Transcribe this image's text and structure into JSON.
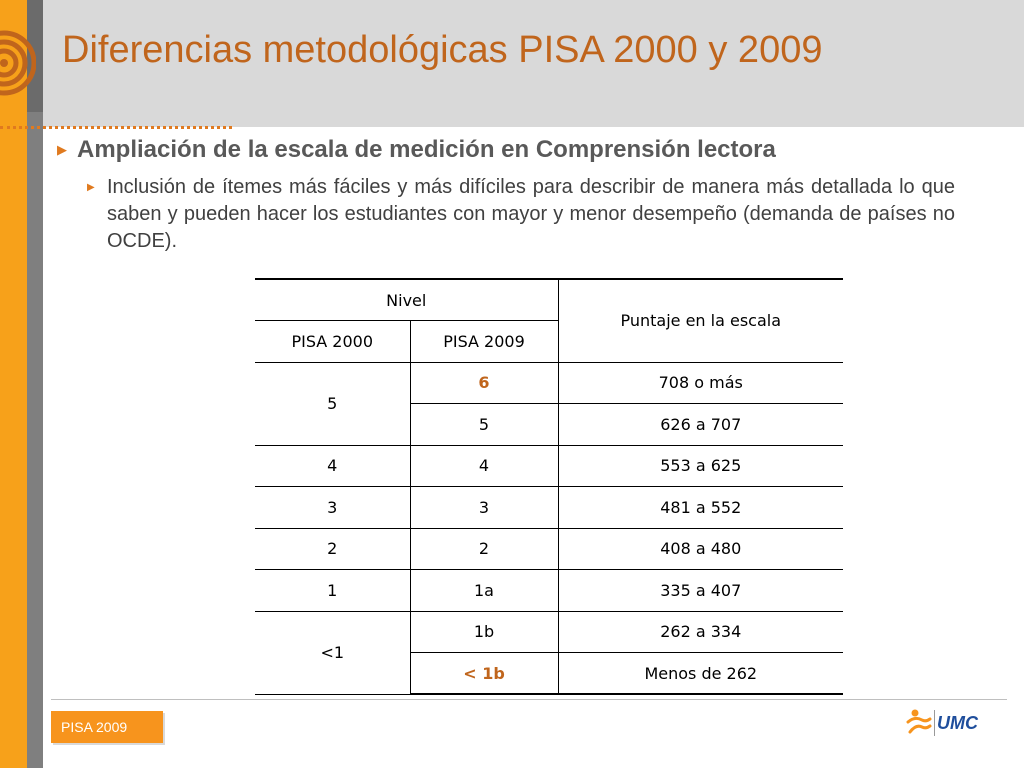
{
  "colors": {
    "accent": "#f7a11a",
    "title": "#c0651c",
    "highlight": "#c0651c",
    "footer_badge": "#f7941d",
    "brand_blue": "#1f4e9c"
  },
  "slide": {
    "title": "Diferencias metodológicas PISA 2000 y 2009",
    "bullet_main": "Ampliación de la escala de medición en Comprensión lectora",
    "bullet_sub": "Inclusión de ítemes más fáciles y más difíciles para describir de manera más detallada lo que saben y pueden hacer los estudiantes con mayor y menor desempeño (demanda de países no OCDE)."
  },
  "table": {
    "header_nivel": "Nivel",
    "header_puntaje": "Puntaje en la escala",
    "header_pisa2000": "PISA 2000",
    "header_pisa2009": "PISA 2009",
    "rows": [
      {
        "pisa2000": "5",
        "pisa2009": "6",
        "score": "708 o más"
      },
      {
        "pisa2000": "",
        "pisa2009": "5",
        "score": "626 a 707"
      },
      {
        "pisa2000": "4",
        "pisa2009": "4",
        "score": "553 a 625"
      },
      {
        "pisa2000": "3",
        "pisa2009": "3",
        "score": "481 a 552"
      },
      {
        "pisa2000": "2",
        "pisa2009": "2",
        "score": "408 a 480"
      },
      {
        "pisa2000": "1",
        "pisa2009": "1a",
        "score": "335 a 407"
      },
      {
        "pisa2000": "<1",
        "pisa2009": "1b",
        "score": "262 a 334"
      },
      {
        "pisa2000": "",
        "pisa2009": "< 1b",
        "score": "Menos de 262"
      }
    ]
  },
  "footer": {
    "badge": "PISA 2009",
    "logo_text": "UMC"
  }
}
